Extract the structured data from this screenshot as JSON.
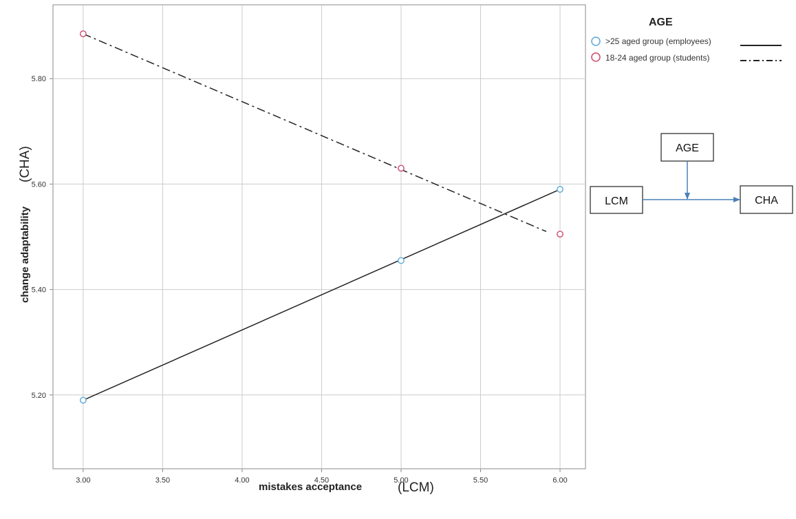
{
  "chart_data": {
    "type": "line",
    "x": [
      3.0,
      5.0,
      6.0
    ],
    "xlabel": "mistakes acceptance",
    "xlabel_suffix": "(LCM)",
    "ylabel": "change adaptability",
    "ylabel_suffix": "(CHA)",
    "xlim": [
      2.81,
      6.16
    ],
    "ylim": [
      5.06,
      5.94
    ],
    "xticks": [
      "3.00",
      "3.50",
      "4.00",
      "4.50",
      "5.00",
      "5.50",
      "6.00"
    ],
    "yticks": [
      "5.20",
      "5.40",
      "5.60",
      "5.80"
    ],
    "grid": true,
    "legend": {
      "title": "AGE",
      "position": "top-right"
    },
    "series": [
      {
        "name": ">25 aged group (employees)",
        "values": [
          5.19,
          5.455,
          5.59
        ],
        "line_style": "solid",
        "marker_color": "#5aa8dc",
        "fit": [
          5.19,
          5.59
        ]
      },
      {
        "name": "18-24 aged group (students)",
        "values": [
          5.885,
          5.63,
          5.505
        ],
        "line_style": "dash-dot",
        "marker_color": "#d1486a",
        "fit": [
          5.885,
          5.51
        ]
      }
    ]
  },
  "diagram": {
    "moderator": "AGE",
    "predictor": "LCM",
    "outcome": "CHA",
    "arrow_color": "#4a80b8"
  },
  "colors": {
    "grid": "#cccccc",
    "axis": "#888888",
    "line": "#222222"
  }
}
